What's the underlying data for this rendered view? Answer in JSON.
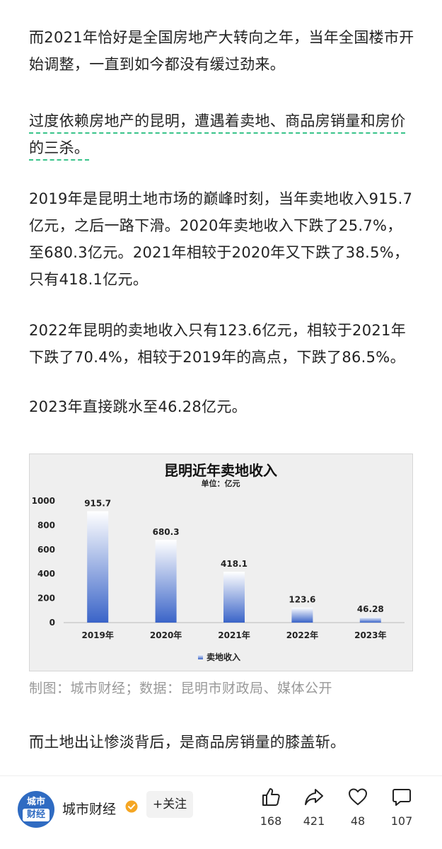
{
  "article": {
    "paragraphs": [
      "而2021年恰好是全国房地产大转向之年，当年全国楼市开始调整，一直到如今都没有缓过劲来。",
      "过度依赖房地产的昆明，遭遇着卖地、商品房销量和房价的三杀。",
      "2019年是昆明土地市场的巅峰时刻，当年卖地收入915.7亿元，之后一路下滑。2020年卖地收入下跌了25.7%，至680.3亿元。2021年相较于2020年又下跌了38.5%，只有418.1亿元。",
      "2022年昆明的卖地收入只有123.6亿元，相较于2021年下跌了70.4%，相较于2019年的高点，下跌了86.5%。",
      "2023年直接跳水至46.28亿元。"
    ],
    "caption": "制图：城市财经；数据：昆明市财政局、媒体公开",
    "closing_paragraph": "而土地出让惨淡背后，是商品房销量的膝盖斩。"
  },
  "chart_data": {
    "type": "bar",
    "title": "昆明近年卖地收入",
    "subtitle": "单位：亿元",
    "categories": [
      "2019年",
      "2020年",
      "2021年",
      "2022年",
      "2023年"
    ],
    "series": [
      {
        "name": "卖地收入",
        "values": [
          915.7,
          680.3,
          418.1,
          123.6,
          46.28
        ]
      }
    ],
    "data_labels": [
      "915.7",
      "680.3",
      "418.1",
      "123.6",
      "46.28"
    ],
    "ylim": [
      0,
      1000
    ],
    "yticks": [
      0,
      200,
      400,
      600,
      800,
      1000
    ],
    "grid": false,
    "legend": "bottom-center",
    "bar_color_top": "#ffffff",
    "bar_color_bottom": "#3a64c8"
  },
  "footer": {
    "avatar_line1": "城市",
    "avatar_line2": "财经",
    "author": "城市财经",
    "follow_label": "+关注",
    "actions": [
      {
        "icon": "thumbs-up-icon",
        "count": "168"
      },
      {
        "icon": "share-icon",
        "count": "421"
      },
      {
        "icon": "heart-icon",
        "count": "48"
      },
      {
        "icon": "comment-icon",
        "count": "107"
      }
    ],
    "accent": "#2f6bc2",
    "verified_color": "#f5a623"
  }
}
